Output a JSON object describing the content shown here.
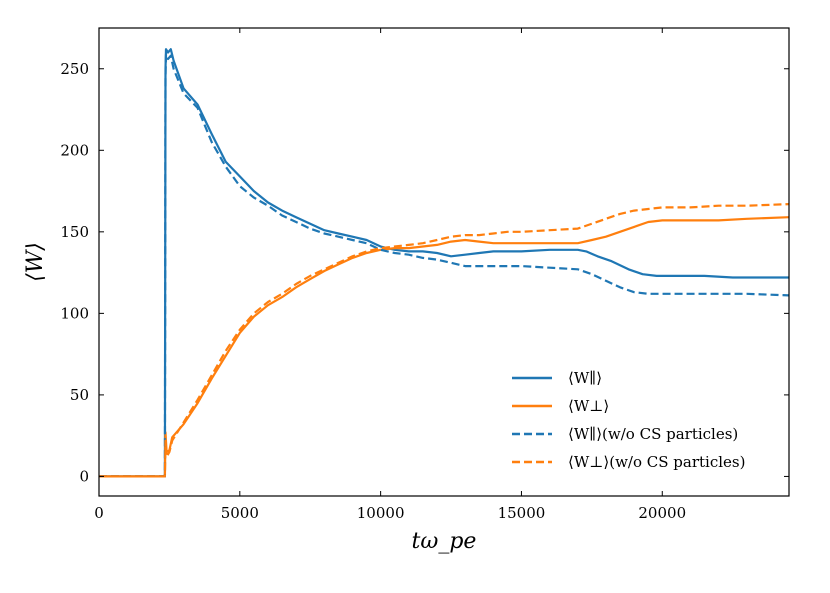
{
  "chart_data": {
    "type": "line",
    "title": "",
    "xlabel": "tω_pe",
    "ylabel": "⟨W⟩",
    "xlim": [
      0,
      24500
    ],
    "ylim": [
      -12,
      275
    ],
    "xticks": [
      0,
      5000,
      10000,
      15000,
      20000
    ],
    "yticks": [
      0,
      50,
      100,
      150,
      200,
      250
    ],
    "legend_position": "lower-right",
    "colors": {
      "blue": "#1f77b4",
      "orange": "#ff7f0e"
    },
    "series": [
      {
        "name": "⟨W∥⟩",
        "color": "#1f77b4",
        "style": "solid",
        "points": [
          [
            0,
            0
          ],
          [
            2300,
            0
          ],
          [
            2340,
            0
          ],
          [
            2360,
            250
          ],
          [
            2380,
            262
          ],
          [
            2450,
            260
          ],
          [
            2550,
            262
          ],
          [
            2650,
            255
          ],
          [
            3000,
            238
          ],
          [
            3500,
            228
          ],
          [
            4000,
            210
          ],
          [
            4500,
            193
          ],
          [
            5000,
            184
          ],
          [
            5500,
            175
          ],
          [
            6000,
            168
          ],
          [
            6500,
            163
          ],
          [
            7000,
            159
          ],
          [
            7500,
            155
          ],
          [
            8000,
            151
          ],
          [
            8500,
            149
          ],
          [
            9000,
            147
          ],
          [
            9500,
            145
          ],
          [
            10000,
            141
          ],
          [
            10500,
            139
          ],
          [
            11000,
            138
          ],
          [
            11500,
            138
          ],
          [
            12000,
            137
          ],
          [
            12500,
            135
          ],
          [
            13000,
            136
          ],
          [
            13500,
            137
          ],
          [
            14000,
            138
          ],
          [
            14500,
            138
          ],
          [
            15000,
            138
          ],
          [
            16000,
            139
          ],
          [
            17000,
            139
          ],
          [
            17300,
            138
          ],
          [
            17700,
            135
          ],
          [
            18200,
            132
          ],
          [
            18800,
            127
          ],
          [
            19300,
            124
          ],
          [
            19800,
            123
          ],
          [
            20500,
            123
          ],
          [
            21500,
            123
          ],
          [
            22500,
            122
          ],
          [
            23500,
            122
          ],
          [
            24500,
            122
          ]
        ]
      },
      {
        "name": "⟨W⊥⟩",
        "color": "#ff7f0e",
        "style": "solid",
        "points": [
          [
            0,
            0
          ],
          [
            2300,
            0
          ],
          [
            2340,
            0
          ],
          [
            2360,
            27
          ],
          [
            2400,
            15
          ],
          [
            2500,
            16
          ],
          [
            2600,
            24
          ],
          [
            3000,
            32
          ],
          [
            3500,
            45
          ],
          [
            4000,
            60
          ],
          [
            4500,
            74
          ],
          [
            5000,
            88
          ],
          [
            5500,
            98
          ],
          [
            6000,
            105
          ],
          [
            6500,
            110
          ],
          [
            7000,
            116
          ],
          [
            7500,
            121
          ],
          [
            8000,
            126
          ],
          [
            8500,
            130
          ],
          [
            9000,
            134
          ],
          [
            9500,
            137
          ],
          [
            10000,
            139
          ],
          [
            10500,
            140
          ],
          [
            11000,
            140
          ],
          [
            11500,
            141
          ],
          [
            12000,
            142
          ],
          [
            12500,
            144
          ],
          [
            13000,
            145
          ],
          [
            13500,
            144
          ],
          [
            14000,
            143
          ],
          [
            14500,
            143
          ],
          [
            15000,
            143
          ],
          [
            16000,
            143
          ],
          [
            17000,
            143
          ],
          [
            17500,
            145
          ],
          [
            18000,
            147
          ],
          [
            18500,
            150
          ],
          [
            19000,
            153
          ],
          [
            19500,
            156
          ],
          [
            20000,
            157
          ],
          [
            21000,
            157
          ],
          [
            22000,
            157
          ],
          [
            23000,
            158
          ],
          [
            24500,
            159
          ]
        ]
      },
      {
        "name": "⟨W∥⟩(w/o CS particles)",
        "color": "#1f77b4",
        "style": "dashed",
        "points": [
          [
            0,
            0
          ],
          [
            2300,
            0
          ],
          [
            2340,
            0
          ],
          [
            2360,
            245
          ],
          [
            2380,
            259
          ],
          [
            2450,
            256
          ],
          [
            2550,
            258
          ],
          [
            2650,
            250
          ],
          [
            3000,
            235
          ],
          [
            3500,
            226
          ],
          [
            4000,
            205
          ],
          [
            4500,
            190
          ],
          [
            5000,
            178
          ],
          [
            5500,
            171
          ],
          [
            6000,
            166
          ],
          [
            6500,
            160
          ],
          [
            7000,
            156
          ],
          [
            7500,
            152
          ],
          [
            8000,
            149
          ],
          [
            8500,
            147
          ],
          [
            9000,
            145
          ],
          [
            9500,
            143
          ],
          [
            10000,
            139
          ],
          [
            10500,
            137
          ],
          [
            11000,
            136
          ],
          [
            11500,
            134
          ],
          [
            12000,
            133
          ],
          [
            12500,
            131
          ],
          [
            13000,
            129
          ],
          [
            13500,
            129
          ],
          [
            14000,
            129
          ],
          [
            14500,
            129
          ],
          [
            15000,
            129
          ],
          [
            16000,
            128
          ],
          [
            17000,
            127
          ],
          [
            17500,
            124
          ],
          [
            18000,
            120
          ],
          [
            18500,
            116
          ],
          [
            19000,
            113
          ],
          [
            19500,
            112
          ],
          [
            20000,
            112
          ],
          [
            21000,
            112
          ],
          [
            22000,
            112
          ],
          [
            23000,
            112
          ],
          [
            24500,
            111
          ]
        ]
      },
      {
        "name": "⟨W⊥⟩(w/o CS particles)",
        "color": "#ff7f0e",
        "style": "dashed",
        "points": [
          [
            0,
            0
          ],
          [
            2300,
            0
          ],
          [
            2340,
            0
          ],
          [
            2360,
            22
          ],
          [
            2400,
            12
          ],
          [
            2500,
            15
          ],
          [
            2600,
            22
          ],
          [
            3000,
            33
          ],
          [
            3500,
            47
          ],
          [
            4000,
            62
          ],
          [
            4500,
            77
          ],
          [
            5000,
            90
          ],
          [
            5500,
            100
          ],
          [
            6000,
            107
          ],
          [
            6500,
            112
          ],
          [
            7000,
            118
          ],
          [
            7500,
            123
          ],
          [
            8000,
            127
          ],
          [
            8500,
            131
          ],
          [
            9000,
            135
          ],
          [
            9500,
            138
          ],
          [
            10000,
            140
          ],
          [
            10500,
            141
          ],
          [
            11000,
            142
          ],
          [
            11500,
            143
          ],
          [
            12000,
            145
          ],
          [
            12500,
            147
          ],
          [
            13000,
            148
          ],
          [
            13500,
            148
          ],
          [
            14000,
            149
          ],
          [
            14500,
            150
          ],
          [
            15000,
            150
          ],
          [
            16000,
            151
          ],
          [
            17000,
            152
          ],
          [
            17500,
            155
          ],
          [
            18000,
            158
          ],
          [
            18500,
            161
          ],
          [
            19000,
            163
          ],
          [
            19500,
            164
          ],
          [
            20000,
            165
          ],
          [
            21000,
            165
          ],
          [
            22000,
            166
          ],
          [
            23000,
            166
          ],
          [
            24500,
            167
          ]
        ]
      }
    ]
  }
}
